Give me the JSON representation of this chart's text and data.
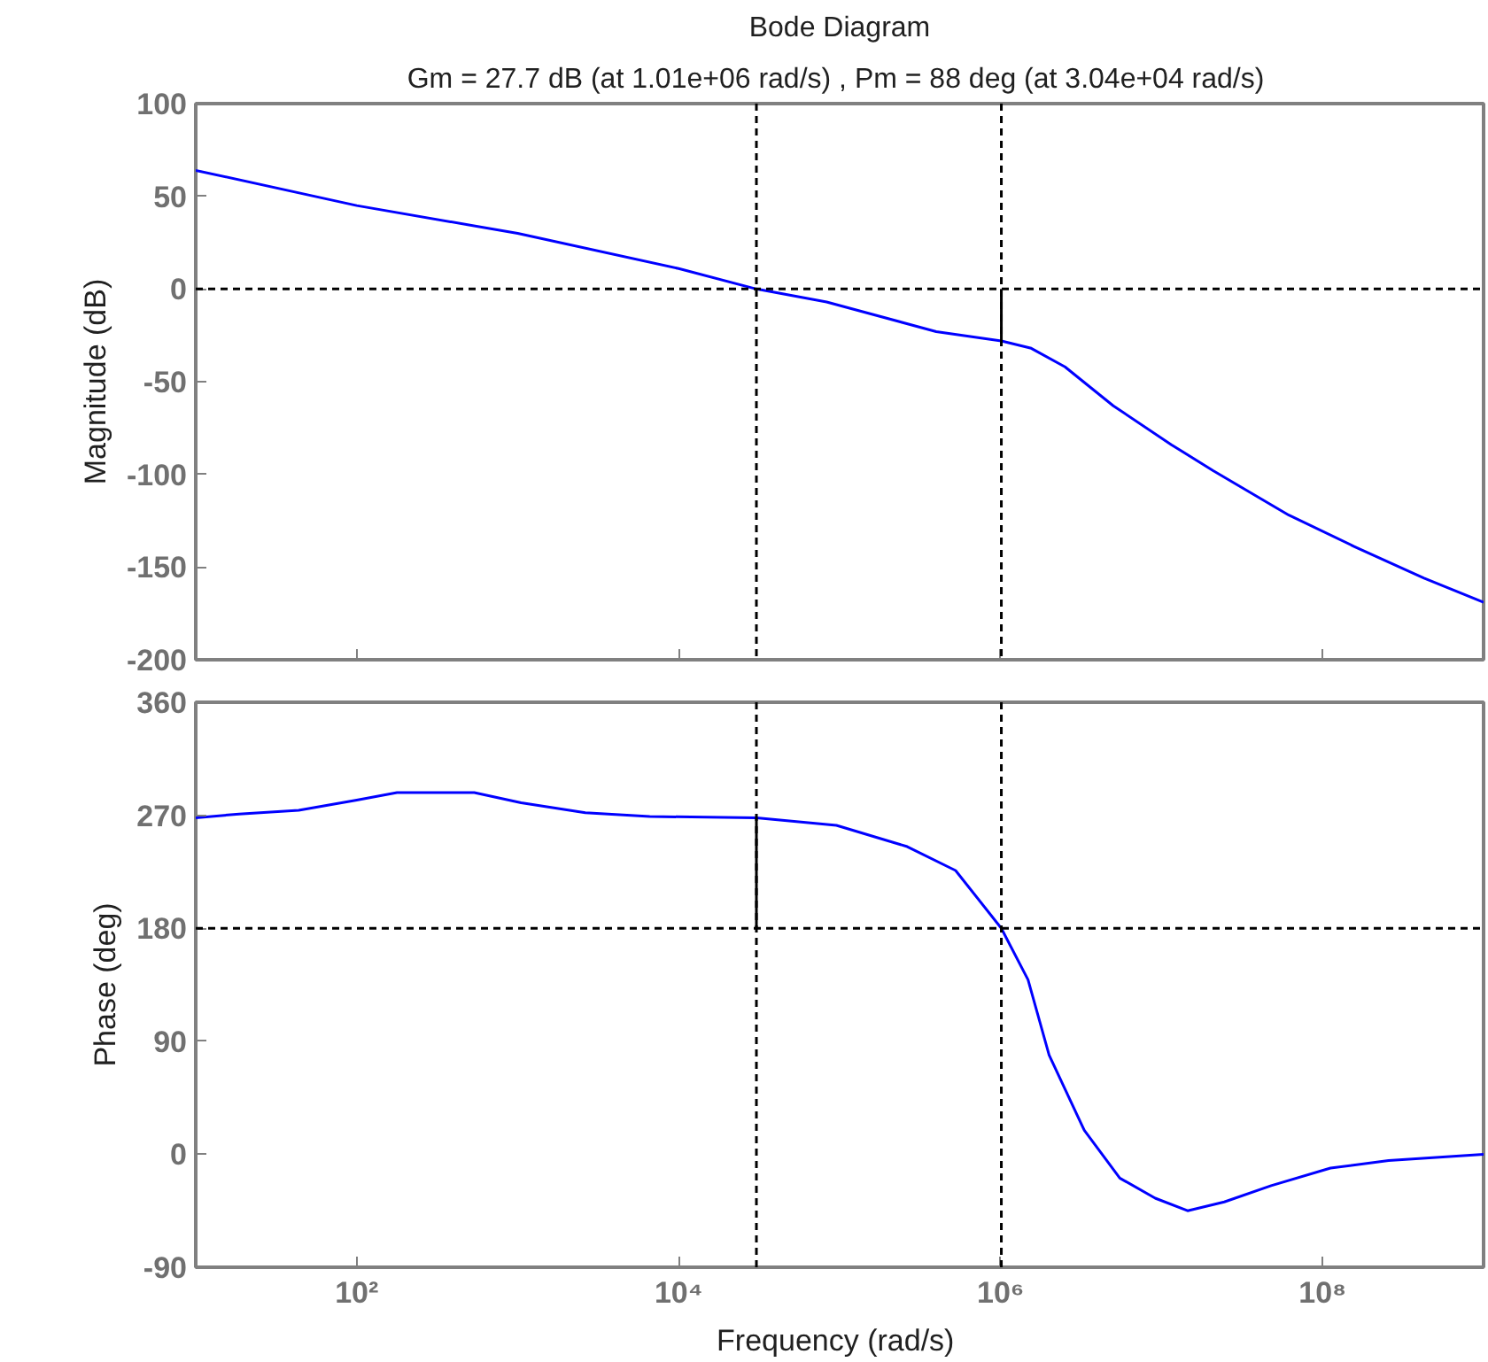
{
  "chart_data": [
    {
      "type": "line",
      "title": "Bode Diagram",
      "subtitle": "Gm = 27.7 dB (at 1.01e+06 rad/s) ,  Pm = 88 deg (at 3.04e+04 rad/s)",
      "ylabel": "Magnitude (dB)",
      "log": "x",
      "grid": false,
      "marker": "none",
      "line_style": "solid",
      "tick_labels": "y",
      "xlim": [
        10,
        1000000000
      ],
      "xticks": [
        {
          "value": 100,
          "label": null
        },
        {
          "value": 10000,
          "label": null
        },
        {
          "value": 1000000,
          "label": null
        },
        {
          "value": 100000000,
          "label": null
        }
      ],
      "ylim": [
        -200,
        100
      ],
      "yticks": [
        -200,
        -150,
        -100,
        -50,
        0,
        50,
        100
      ],
      "series": [
        {
          "color": "#0000ff",
          "x": [
            10,
            100,
            1000,
            10000,
            30400,
            83000,
            398000,
            1010000,
            1550000,
            2510000,
            5010000,
            11500000,
            20900000,
            61700000,
            158000000,
            427000000,
            1000000000
          ],
          "values": [
            64,
            45,
            30,
            11,
            0,
            -7,
            -23,
            -28,
            -32,
            -42,
            -63,
            -84,
            -98,
            -122,
            -139,
            -156,
            -169
          ]
        },
        {
          "color": "#000000",
          "x": [
            1010000,
            1010000
          ],
          "values": [
            0,
            -28
          ]
        }
      ],
      "ref_lines": [
        {
          "axis": "y",
          "value": 0,
          "color": "#000000",
          "line_style": "dashed"
        },
        {
          "axis": "x",
          "value": 30400,
          "color": "#000000",
          "line_style": "dashed"
        },
        {
          "axis": "x",
          "value": 1010000,
          "color": "#000000",
          "line_style": "dashed"
        }
      ]
    },
    {
      "type": "line",
      "xlabel": "Frequency  (rad/s)",
      "ylabel": "Phase (deg)",
      "log": "x",
      "grid": false,
      "marker": "none",
      "line_style": "solid",
      "xlim": [
        10,
        1000000000
      ],
      "xticks": [
        {
          "value": 100,
          "label": "10²"
        },
        {
          "value": 10000,
          "label": "10⁴"
        },
        {
          "value": 1000000,
          "label": "10⁶"
        },
        {
          "value": 100000000,
          "label": "10⁸"
        }
      ],
      "ylim": [
        -90,
        360
      ],
      "yticks": [
        -90,
        0,
        90,
        180,
        270,
        360
      ],
      "series": [
        {
          "color": "#0000ff",
          "x": [
            10,
            18.6,
            43.6,
            100,
            178,
            537,
            1050,
            2630,
            6610,
            30400,
            95500,
            263000,
            525000,
            1010000,
            1480000,
            2000000,
            3310000,
            5500000,
            9120000,
            14500000,
            24500000,
            47900000,
            112000000,
            257000000,
            1000000000
          ],
          "values": [
            268,
            271,
            274,
            282,
            288,
            288,
            280,
            272,
            269,
            268,
            262,
            245,
            226,
            180,
            139,
            79,
            19,
            -19,
            -35,
            -45,
            -38,
            -25,
            -11,
            -5,
            0
          ]
        },
        {
          "color": "#000000",
          "x": [
            30400,
            30400
          ],
          "values": [
            180,
            268
          ]
        }
      ],
      "ref_lines": [
        {
          "axis": "y",
          "value": 180,
          "color": "#000000",
          "line_style": "dashed"
        },
        {
          "axis": "x",
          "value": 30400,
          "color": "#000000",
          "line_style": "dashed"
        },
        {
          "axis": "x",
          "value": 1010000,
          "color": "#000000",
          "line_style": "dashed"
        }
      ]
    }
  ]
}
